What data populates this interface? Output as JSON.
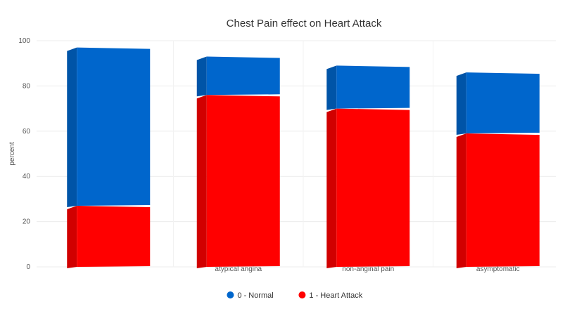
{
  "chart_data": {
    "type": "bar",
    "stacked": true,
    "title": "Chest Pain effect on Heart Attack",
    "xlabel": "",
    "ylabel": "percent",
    "ylim": [
      0,
      100
    ],
    "yticks": [
      0,
      20,
      40,
      60,
      80,
      100
    ],
    "grid": true,
    "legend_position": "bottom",
    "categories": [
      "",
      "atypical angina",
      "non-anginal pain",
      "asymptomatic"
    ],
    "series": [
      {
        "name": "1 - Heart Attack",
        "color": "#ff0000",
        "values": [
          27,
          76,
          70,
          59
        ]
      },
      {
        "name": "0 - Normal",
        "color": "#0066cc",
        "values": [
          70,
          17,
          19,
          27
        ]
      }
    ],
    "legend": [
      {
        "label": "0 - Normal",
        "color": "#0066cc"
      },
      {
        "label": "1 - Heart Attack",
        "color": "#ff0000"
      }
    ]
  }
}
